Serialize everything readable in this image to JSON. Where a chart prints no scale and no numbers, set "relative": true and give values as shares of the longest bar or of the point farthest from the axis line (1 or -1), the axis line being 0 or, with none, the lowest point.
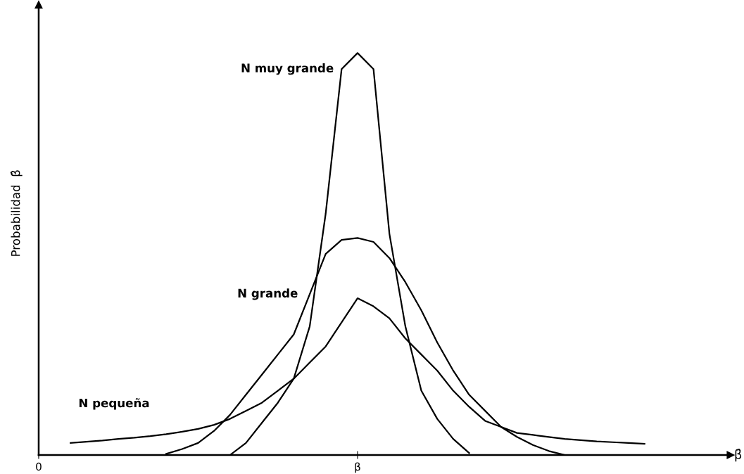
{
  "chart_data": {
    "type": "line",
    "relative": true,
    "xlabel": "β̂",
    "ylabel": "Probabilidad  β̂",
    "categories": [
      "0",
      null,
      null,
      null,
      null,
      null,
      null,
      null,
      null,
      null,
      null,
      null,
      null,
      null,
      null,
      null,
      null,
      null,
      null,
      null,
      "β",
      null,
      null,
      null,
      null,
      null,
      null,
      null,
      null,
      null,
      null,
      null,
      null,
      null,
      null,
      null,
      null,
      null,
      null,
      null,
      null,
      null,
      null,
      null
    ],
    "grid": false,
    "legend": false,
    "marker": "none",
    "line_style": "solid",
    "series": [
      {
        "name": "N muy grande",
        "color": "#000000",
        "values": [
          null,
          null,
          null,
          null,
          null,
          null,
          null,
          null,
          null,
          null,
          null,
          null,
          0,
          0.03,
          0.08,
          0.13,
          0.19,
          0.32,
          0.6,
          0.96,
          1,
          0.96,
          0.55,
          0.32,
          0.16,
          0.09,
          0.04,
          0.005,
          null,
          null,
          null,
          null,
          null,
          null,
          null,
          null,
          null,
          null,
          null,
          null,
          null,
          null,
          null,
          null
        ]
      },
      {
        "name": "N grande",
        "color": "#000000",
        "values": [
          null,
          null,
          null,
          null,
          null,
          null,
          null,
          null,
          0.003,
          0.015,
          0.03,
          0.06,
          0.1,
          0.15,
          0.2,
          0.25,
          0.3,
          0.4,
          0.5,
          0.535,
          0.54,
          0.53,
          0.49,
          0.43,
          0.36,
          0.28,
          0.21,
          0.15,
          0.11,
          0.07,
          0.045,
          0.025,
          0.01,
          0,
          null,
          null,
          null,
          null,
          null,
          null,
          null,
          null,
          null,
          null
        ]
      },
      {
        "name": "N pequeña",
        "color": "#000000",
        "values": [
          null,
          null,
          0.03,
          0.033,
          0.036,
          0.04,
          0.043,
          0.047,
          0.052,
          0.058,
          0.065,
          0.075,
          0.09,
          0.11,
          0.13,
          0.16,
          0.19,
          0.23,
          0.27,
          0.33,
          0.39,
          0.37,
          0.34,
          0.29,
          0.25,
          0.21,
          0.16,
          0.12,
          0.085,
          0.07,
          0.055,
          0.05,
          0.045,
          0.04,
          0.037,
          0.034,
          0.032,
          0.03,
          0.028,
          null,
          null,
          null,
          null,
          null
        ]
      }
    ]
  }
}
